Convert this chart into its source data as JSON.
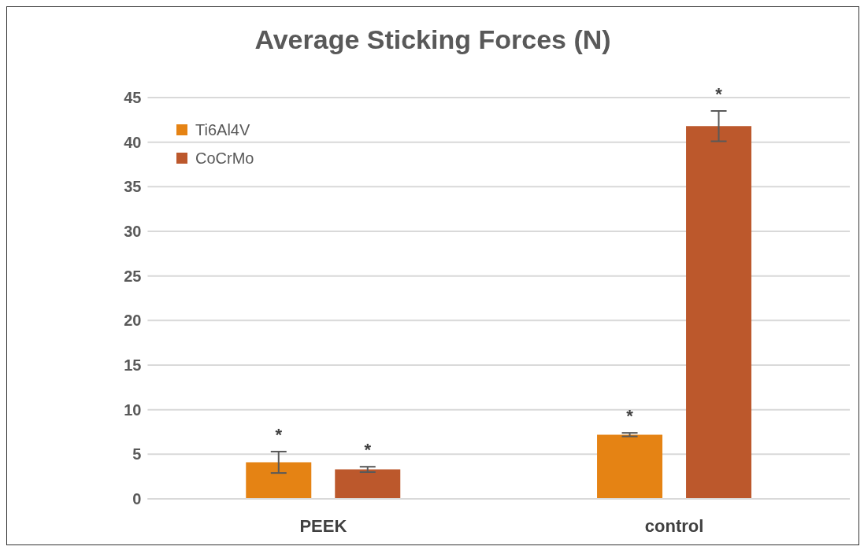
{
  "chart_data": {
    "type": "bar",
    "title": "Average Sticking Forces (N)",
    "categories": [
      "PEEK",
      "control"
    ],
    "series": [
      {
        "name": "Ti6Al4V",
        "color": "#e58314",
        "values": [
          4.1,
          7.2
        ],
        "errors": [
          1.2,
          0.2
        ]
      },
      {
        "name": "CoCrMo",
        "color": "#bc582c",
        "values": [
          3.3,
          41.8
        ],
        "errors": [
          0.3,
          1.7
        ]
      }
    ],
    "ylim": [
      0,
      45
    ],
    "yticks": [
      0,
      5,
      10,
      15,
      20,
      25,
      30,
      35,
      40,
      45
    ],
    "grid": "y",
    "legend": "top left",
    "annotations": [
      "*",
      "*",
      "*",
      "*"
    ]
  }
}
